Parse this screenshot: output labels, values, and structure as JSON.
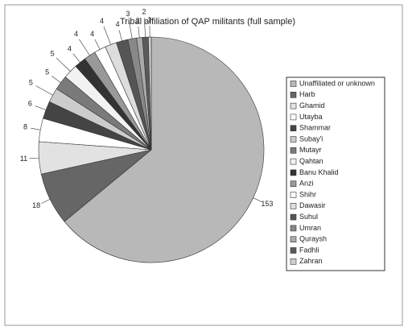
{
  "chart_data": {
    "type": "pie",
    "title": "Tribal affiliation of QAP militants (full sample)",
    "categories": [
      "Unaffiliated or unknown",
      "Harb",
      "Ghamid",
      "Utayba",
      "Shammar",
      "Subay'i",
      "Mutayr",
      "Qahtan",
      "Banu Khalid",
      "Anzi",
      "Shihr",
      "Dawasir",
      "Suhul",
      "Umran",
      "Quraysh",
      "Fadhli",
      "Zahran"
    ],
    "values": [
      153,
      18,
      11,
      8,
      6,
      5,
      5,
      5,
      4,
      4,
      4,
      4,
      4,
      3,
      2,
      2,
      1
    ],
    "colors": [
      "#b8b8b8",
      "#666666",
      "#e2e2e2",
      "#ffffff",
      "#444444",
      "#cccccc",
      "#7a7a7a",
      "#f2f2f2",
      "#333333",
      "#999999",
      "#ffffff",
      "#dddddd",
      "#555555",
      "#888888",
      "#aaaaaa",
      "#5a5a5a",
      "#cfcfcf"
    ],
    "legend": "right"
  }
}
